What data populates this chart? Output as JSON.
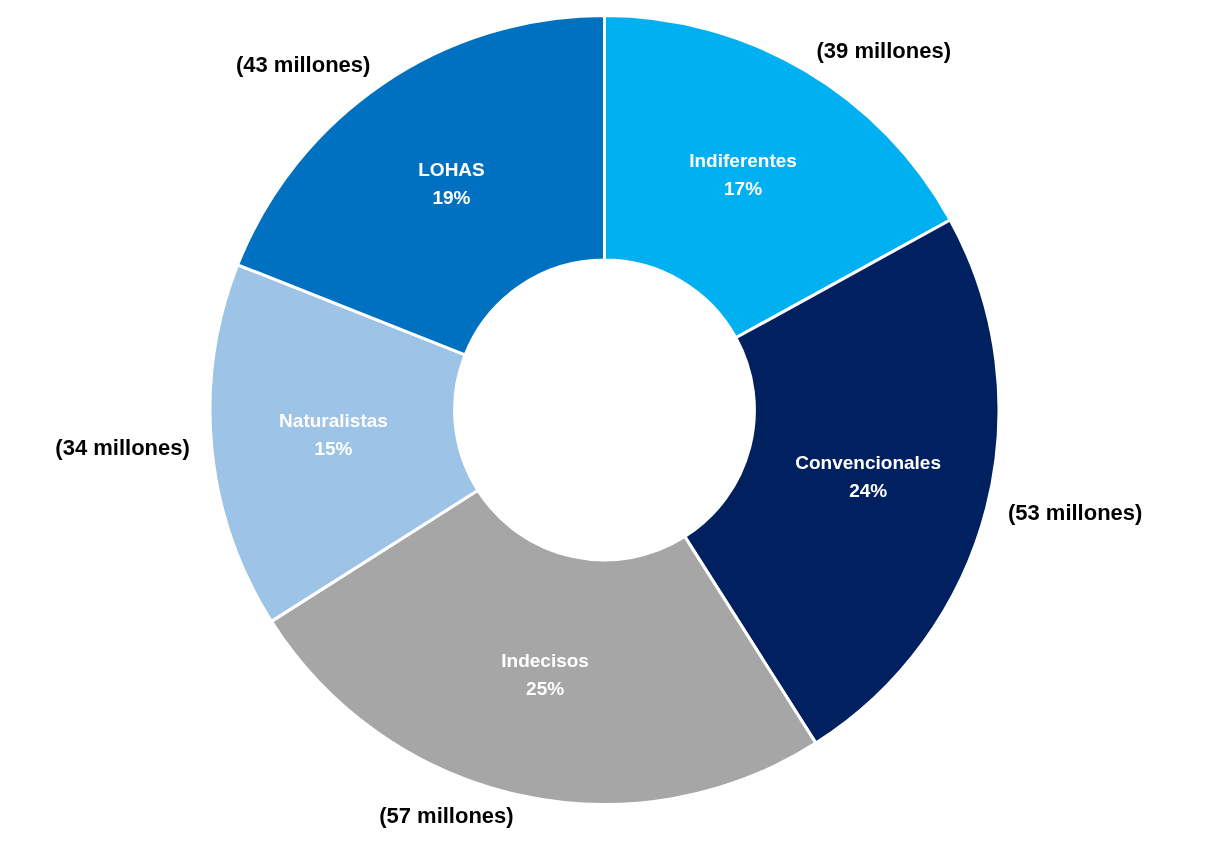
{
  "chart_data": {
    "type": "donut",
    "categories": [
      "Indiferentes",
      "Convencionales",
      "Indecisos",
      "Naturalistas",
      "LOHAS"
    ],
    "values": [
      17,
      24,
      25,
      15,
      19
    ],
    "value_labels": [
      "17%",
      "24%",
      "25%",
      "15%",
      "19%"
    ],
    "colors": [
      "#00b0f0",
      "#002060",
      "#a6a6a6",
      "#9dc3e6",
      "#0070c0"
    ],
    "annotations": [
      {
        "text": "(39 millones)",
        "x": "Indiferentes"
      },
      {
        "text": "(53 millones)",
        "x": "Convencionales"
      },
      {
        "text": "(57 millones)",
        "x": "Indecisos"
      },
      {
        "text": "(34 millones)",
        "x": "Naturalistas"
      },
      {
        "text": "(43 millones)",
        "x": "LOHAS"
      }
    ],
    "legend": false
  }
}
